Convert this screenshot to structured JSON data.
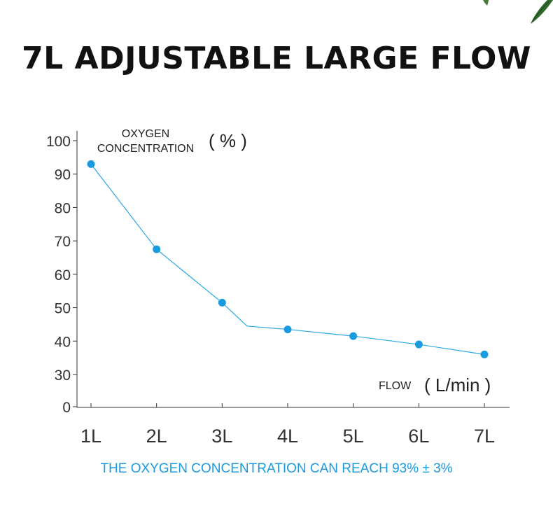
{
  "title": "7L ADJUSTABLE LARGE FLOW",
  "footnote": "THE OXYGEN CONCENTRATION CAN REACH 93% ± 3%",
  "colors": {
    "accent": "#1a9be0",
    "line": "#2aa8e6",
    "axis": "#333333"
  },
  "decoration": {
    "icon": "green-leaf-icon"
  },
  "chart_data": {
    "type": "line",
    "ylabel_text": "OXYGEN\nCONCENTRATION",
    "ylabel_unit": "( % )",
    "xlabel_text": "FLOW",
    "xlabel_unit": "( L/min )",
    "categories": [
      "1L",
      "2L",
      "3L",
      "4L",
      "5L",
      "6L",
      "7L"
    ],
    "values": [
      93,
      67.5,
      51.5,
      43.5,
      41.5,
      39,
      36
    ],
    "line_knee": {
      "x_between": [
        "3L",
        "4L"
      ],
      "y": 44.5
    },
    "yticks": [
      0,
      30,
      40,
      50,
      60,
      70,
      80,
      90,
      100
    ],
    "ylim": [
      0,
      100
    ],
    "grid": false,
    "legend": "none"
  }
}
